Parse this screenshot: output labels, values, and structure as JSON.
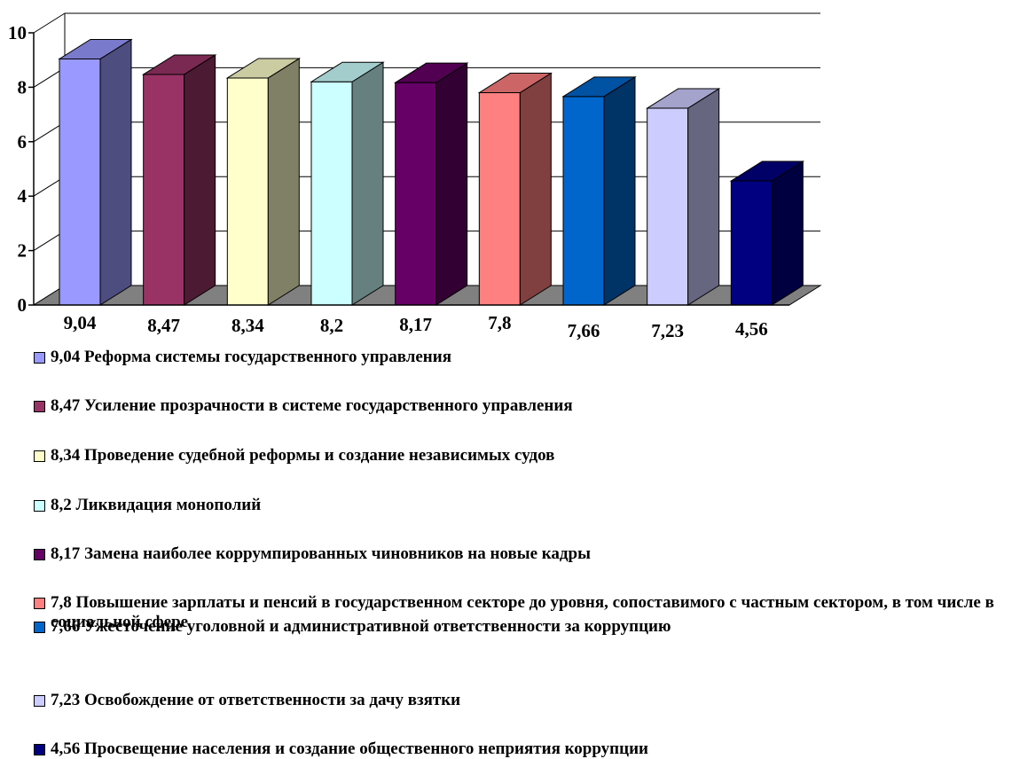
{
  "chart_data": {
    "type": "bar",
    "style": "3d-column",
    "categories": [
      "9,04",
      "8,47",
      "8,34",
      "8,2",
      "8,17",
      "7,8",
      "7,66",
      "7,23",
      "4,56"
    ],
    "values": [
      9.04,
      8.47,
      8.34,
      8.2,
      8.17,
      7.8,
      7.66,
      7.23,
      4.56
    ],
    "value_labels": [
      "9,04",
      "8,47",
      "8,34",
      "8,2",
      "8,17",
      "7,8",
      "7,66",
      "7,23",
      "4,56"
    ],
    "colors": [
      "#9999ff",
      "#993366",
      "#ffffcc",
      "#ccffff",
      "#660066",
      "#ff8080",
      "#0066cc",
      "#ccccff",
      "#000080"
    ],
    "ylim": [
      0,
      10
    ],
    "yticks": [
      "0",
      "2",
      "4",
      "6",
      "8",
      "10"
    ],
    "grid": true,
    "legend_position": "bottom",
    "legend": [
      "9,04 Реформа системы государственного управления",
      "8,47 Усиление прозрачности в системе государственного управления",
      "8,34 Проведение судебной реформы и создание независимых судов",
      "8,2 Ликвидация монополий",
      "8,17 Замена наиболее коррумпированных чиновников на новые кадры",
      "7,8 Повышение зарплаты и пенсий в государственном секторе до уровня, сопоставимого с частным сектором, в том числе в социальной сфере",
      "7,66 Ужесточение уголовной и административной ответственности за коррупцию",
      "7,23 Освобождение от ответственности за дачу взятки",
      "4,56 Просвещение населения и создание общественного неприятия коррупции"
    ]
  }
}
